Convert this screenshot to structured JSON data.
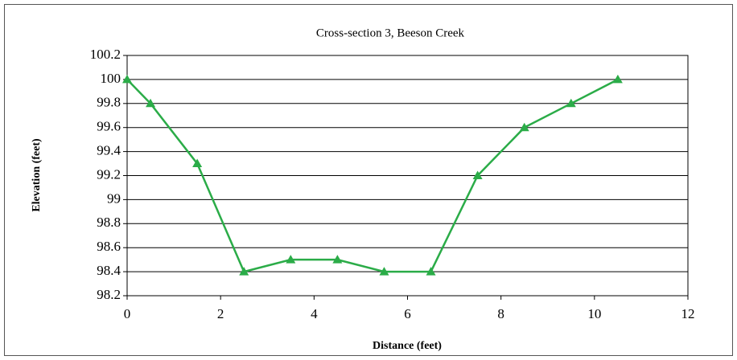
{
  "chart_data": {
    "type": "line",
    "title": "Cross-section 3, Beeson Creek",
    "x_label": "Distance (feet)",
    "y_label": "Elevation (feet)",
    "x": [
      0,
      0.5,
      1.5,
      2.5,
      3.5,
      4.5,
      5.5,
      6.5,
      7.5,
      8.5,
      9.5,
      10.5
    ],
    "series": [
      {
        "name": "Elevation",
        "color": "#2bac48",
        "values": [
          100,
          99.8,
          99.3,
          98.4,
          98.5,
          98.5,
          98.4,
          98.4,
          99.2,
          99.6,
          99.8,
          100
        ]
      }
    ],
    "xlim": [
      0,
      12
    ],
    "xticks": [
      0,
      2,
      4,
      6,
      8,
      10,
      12
    ],
    "ylim": [
      98.2,
      100.2
    ],
    "yticks": [
      98.2,
      98.4,
      98.6,
      98.8,
      99,
      99.2,
      99.4,
      99.6,
      99.8,
      100,
      100.2
    ],
    "grid": true,
    "marker": "triangle"
  }
}
